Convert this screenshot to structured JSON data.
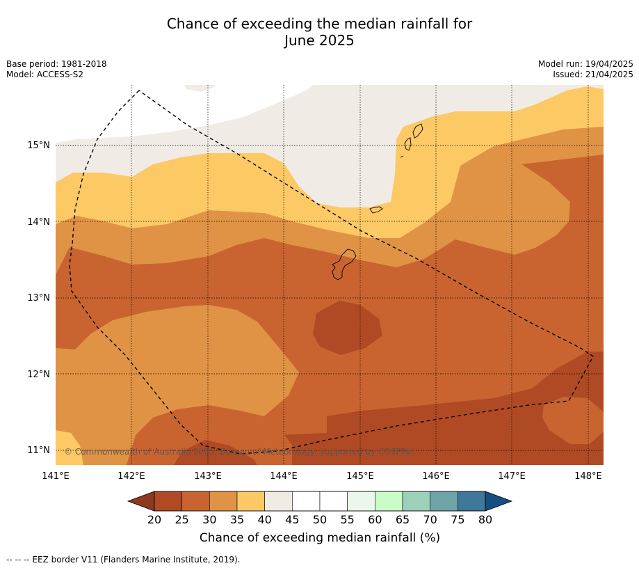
{
  "title_line1": "Chance of exceeding the median rainfall for",
  "title_line2": "June 2025",
  "meta": {
    "base_period": "Base period: 1981-2018",
    "model": "Model: ACCESS-S2",
    "model_run": "Model run: 19/04/2025",
    "issued": "Issued: 21/04/2025"
  },
  "map": {
    "lon_range": [
      141.0,
      148.2
    ],
    "lat_range": [
      10.8,
      15.8
    ],
    "lat_ticks": [
      "15°N",
      "14°N",
      "13°N",
      "12°N",
      "11°N"
    ],
    "lon_ticks": [
      "141°E",
      "142°E",
      "143°E",
      "144°E",
      "145°E",
      "146°E",
      "147°E",
      "148°E"
    ],
    "copyright": "© Commonwealth of Australia 2025, Bureau of Meteorology, supported by COSPPac"
  },
  "colorbar": {
    "ticks": [
      "20",
      "25",
      "30",
      "35",
      "40",
      "45",
      "50",
      "55",
      "60",
      "65",
      "70",
      "75",
      "80"
    ],
    "colors": [
      "#8c3a1e",
      "#b04a24",
      "#c96430",
      "#e09345",
      "#fdc965",
      "#f0ece5",
      "#ffffff",
      "#ffffff",
      "#ebf7eb",
      "#c9fcc9",
      "#9dd0b9",
      "#6fa5a8",
      "#3f7898",
      "#164e84"
    ],
    "label": "Chance of exceeding median rainfall (%)"
  },
  "footnote": "--  --  -- EEZ border V11 (Flanders Marine Institute, 2019)."
}
